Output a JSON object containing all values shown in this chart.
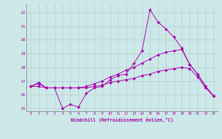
{
  "xlabel": "Windchill (Refroidissement éolien,°C)",
  "xlim": [
    -0.5,
    23.5
  ],
  "ylim": [
    14.8,
    22.6
  ],
  "yticks": [
    15,
    16,
    17,
    18,
    19,
    20,
    21,
    22
  ],
  "xticks": [
    0,
    1,
    2,
    3,
    4,
    5,
    6,
    7,
    8,
    9,
    10,
    11,
    12,
    13,
    14,
    15,
    16,
    17,
    18,
    19,
    20,
    21,
    22,
    23
  ],
  "bg_color": "#cce8e8",
  "line_color": "#aa00aa",
  "grid_color": "#bbcccc",
  "series": [
    [
      16.6,
      16.9,
      16.5,
      16.5,
      15.0,
      15.3,
      15.1,
      16.1,
      16.5,
      16.6,
      17.1,
      17.4,
      17.5,
      18.3,
      19.2,
      22.2,
      21.3,
      20.8,
      20.2,
      19.4,
      18.2,
      17.5,
      16.6,
      15.9
    ],
    [
      16.6,
      16.8,
      16.5,
      16.5,
      16.5,
      16.5,
      16.5,
      16.6,
      16.8,
      17.0,
      17.3,
      17.5,
      17.8,
      18.0,
      18.3,
      18.6,
      18.9,
      19.1,
      19.2,
      19.3,
      18.2,
      17.5,
      16.6,
      15.9
    ],
    [
      16.6,
      16.6,
      16.5,
      16.5,
      16.5,
      16.5,
      16.5,
      16.5,
      16.6,
      16.7,
      16.9,
      17.0,
      17.1,
      17.2,
      17.4,
      17.5,
      17.7,
      17.8,
      17.9,
      18.0,
      17.9,
      17.3,
      16.5,
      15.9
    ]
  ]
}
